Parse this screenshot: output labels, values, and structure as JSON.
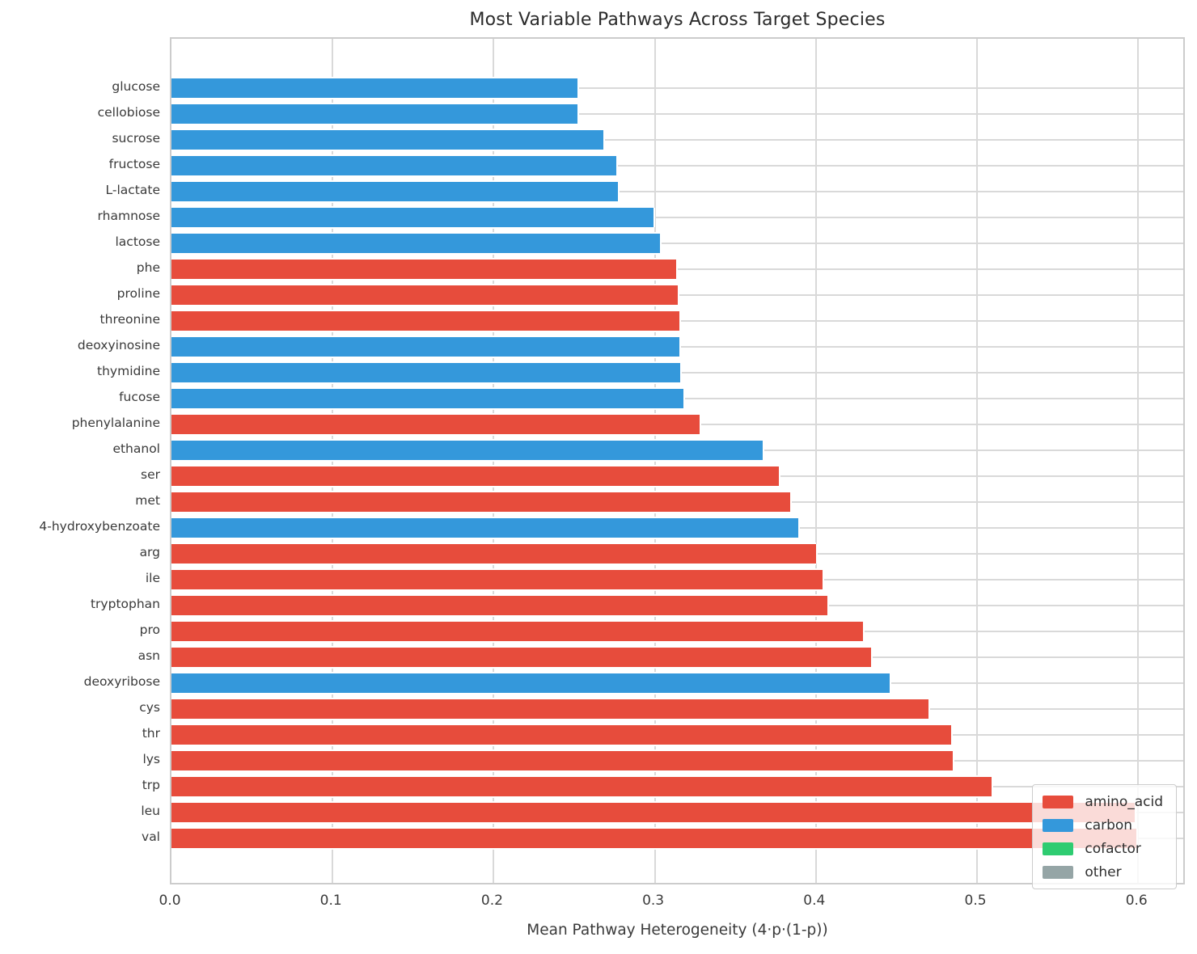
{
  "chart_data": {
    "type": "bar",
    "orientation": "horizontal",
    "title": "Most Variable Pathways Across Target Species",
    "xlabel": "Mean Pathway Heterogeneity (4·p·(1-p))",
    "ylabel": "",
    "xlim": [
      0,
      0.63
    ],
    "xticks": [
      "0.0",
      "0.1",
      "0.2",
      "0.3",
      "0.4",
      "0.5",
      "0.6"
    ],
    "grid": true,
    "legend": {
      "position": "lower right",
      "entries": [
        {
          "label": "amino_acid",
          "color": "#e74c3c"
        },
        {
          "label": "carbon",
          "color": "#3498db"
        },
        {
          "label": "cofactor",
          "color": "#2ecc71"
        },
        {
          "label": "other",
          "color": "#95a5a6"
        }
      ]
    },
    "group_colors": {
      "amino_acid": "#e74c3c",
      "carbon": "#3498db",
      "cofactor": "#2ecc71",
      "other": "#95a5a6"
    },
    "bars": [
      {
        "label": "glucose",
        "value": 0.252,
        "group": "carbon"
      },
      {
        "label": "cellobiose",
        "value": 0.252,
        "group": "carbon"
      },
      {
        "label": "sucrose",
        "value": 0.268,
        "group": "carbon"
      },
      {
        "label": "fructose",
        "value": 0.276,
        "group": "carbon"
      },
      {
        "label": "L-lactate",
        "value": 0.277,
        "group": "carbon"
      },
      {
        "label": "rhamnose",
        "value": 0.299,
        "group": "carbon"
      },
      {
        "label": "lactose",
        "value": 0.303,
        "group": "carbon"
      },
      {
        "label": "phe",
        "value": 0.313,
        "group": "amino_acid"
      },
      {
        "label": "proline",
        "value": 0.314,
        "group": "amino_acid"
      },
      {
        "label": "threonine",
        "value": 0.315,
        "group": "amino_acid"
      },
      {
        "label": "deoxyinosine",
        "value": 0.315,
        "group": "carbon"
      },
      {
        "label": "thymidine",
        "value": 0.316,
        "group": "carbon"
      },
      {
        "label": "fucose",
        "value": 0.318,
        "group": "carbon"
      },
      {
        "label": "phenylalanine",
        "value": 0.328,
        "group": "amino_acid"
      },
      {
        "label": "ethanol",
        "value": 0.367,
        "group": "carbon"
      },
      {
        "label": "ser",
        "value": 0.377,
        "group": "amino_acid"
      },
      {
        "label": "met",
        "value": 0.384,
        "group": "amino_acid"
      },
      {
        "label": "4-hydroxybenzoate",
        "value": 0.389,
        "group": "carbon"
      },
      {
        "label": "arg",
        "value": 0.4,
        "group": "amino_acid"
      },
      {
        "label": "ile",
        "value": 0.404,
        "group": "amino_acid"
      },
      {
        "label": "tryptophan",
        "value": 0.407,
        "group": "amino_acid"
      },
      {
        "label": "pro",
        "value": 0.429,
        "group": "amino_acid"
      },
      {
        "label": "asn",
        "value": 0.434,
        "group": "amino_acid"
      },
      {
        "label": "deoxyribose",
        "value": 0.446,
        "group": "carbon"
      },
      {
        "label": "cys",
        "value": 0.47,
        "group": "amino_acid"
      },
      {
        "label": "thr",
        "value": 0.484,
        "group": "amino_acid"
      },
      {
        "label": "lys",
        "value": 0.485,
        "group": "amino_acid"
      },
      {
        "label": "trp",
        "value": 0.509,
        "group": "amino_acid"
      },
      {
        "label": "leu",
        "value": 0.598,
        "group": "amino_acid"
      },
      {
        "label": "val",
        "value": 0.599,
        "group": "amino_acid"
      }
    ]
  }
}
